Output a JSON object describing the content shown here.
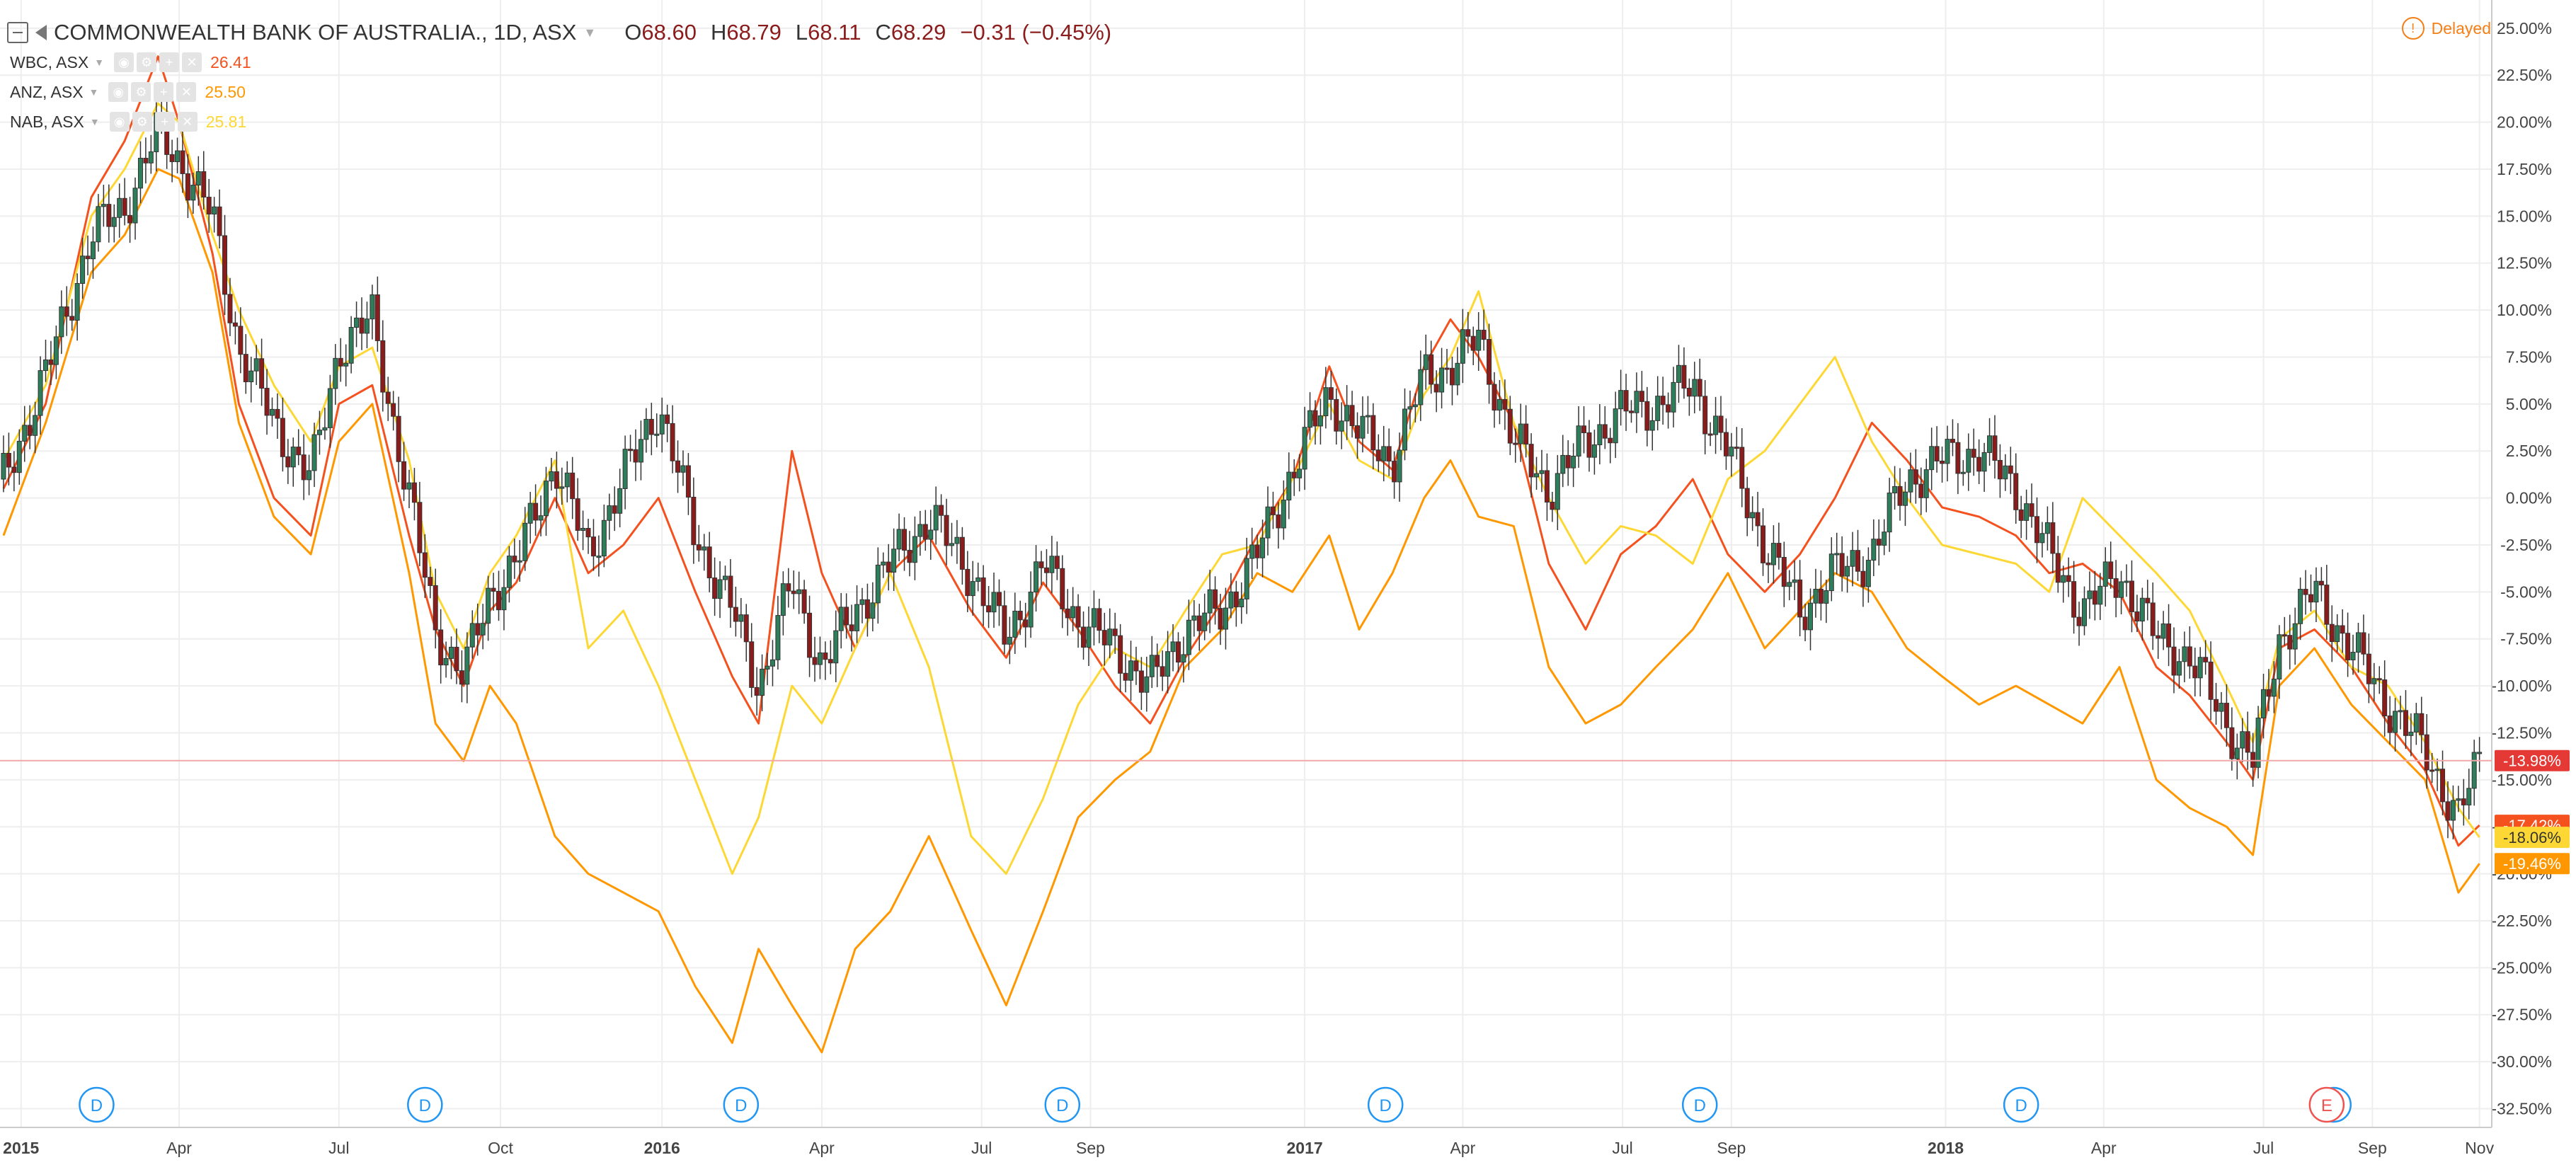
{
  "header": {
    "symbol_title": "COMMONWEALTH BANK OF AUSTRALIA., 1D, ASX",
    "open_label": "O",
    "open_value": "68.60",
    "high_label": "H",
    "high_value": "68.79",
    "low_label": "L",
    "low_value": "68.11",
    "close_label": "C",
    "close_value": "68.29",
    "change": "−0.31 (−0.45%)"
  },
  "delayed_label": "Delayed",
  "compare_rows": [
    {
      "label": "WBC, ASX",
      "value": "26.41",
      "color": "#f4511e"
    },
    {
      "label": "ANZ, ASX",
      "value": "25.50",
      "color": "#ff9800"
    },
    {
      "label": "NAB, ASX",
      "value": "25.81",
      "color": "#fdd835"
    }
  ],
  "colors": {
    "candle_up": "#2e7d5b",
    "candle_down": "#8b1c1c",
    "wick": "#333333",
    "grid": "#eeeeee",
    "axis_text": "#444444",
    "crosshair": "#f2a8a8",
    "dividend_marker": "#2196f3",
    "earnings_marker": "#ef5350"
  },
  "chart_data": {
    "type": "line",
    "title": "COMMONWEALTH BANK OF AUSTRALIA., 1D, ASX",
    "main_series_style": "candlestick",
    "percent_scale": true,
    "x_range": [
      "2014-12-20",
      "2018-11-08"
    ],
    "ylim": [
      -33.5,
      26.5
    ],
    "y_tick_labels": [
      "25.00%",
      "22.50%",
      "20.00%",
      "17.50%",
      "15.00%",
      "12.50%",
      "10.00%",
      "7.50%",
      "5.00%",
      "2.50%",
      "0.00%",
      "-2.50%",
      "-5.00%",
      "-7.50%",
      "-10.00%",
      "-12.50%",
      "-15.00%",
      "-17.50%",
      "-20.00%",
      "-22.50%",
      "-25.00%",
      "-27.50%",
      "-30.00%",
      "-32.50%"
    ],
    "x_ticks": [
      {
        "label": "2015",
        "date": "2015-01-01",
        "bold": true
      },
      {
        "label": "Apr",
        "date": "2015-04-01"
      },
      {
        "label": "Jul",
        "date": "2015-07-01"
      },
      {
        "label": "Oct",
        "date": "2015-10-01"
      },
      {
        "label": "2016",
        "date": "2016-01-01",
        "bold": true
      },
      {
        "label": "Apr",
        "date": "2016-04-01"
      },
      {
        "label": "Jul",
        "date": "2016-07-01"
      },
      {
        "label": "Sep",
        "date": "2016-09-01"
      },
      {
        "label": "2017",
        "date": "2017-01-01",
        "bold": true
      },
      {
        "label": "Apr",
        "date": "2017-04-01"
      },
      {
        "label": "Jul",
        "date": "2017-07-01"
      },
      {
        "label": "Sep",
        "date": "2017-09-01"
      },
      {
        "label": "2018",
        "date": "2018-01-01",
        "bold": true
      },
      {
        "label": "Apr",
        "date": "2018-04-01"
      },
      {
        "label": "Jul",
        "date": "2018-07-01"
      },
      {
        "label": "Sep",
        "date": "2018-09-01"
      },
      {
        "label": "Nov",
        "date": "2018-11-01"
      }
    ],
    "grid": true,
    "legend_position": "top-left",
    "markers": [
      {
        "label": "D",
        "date": "2015-02-13",
        "kind": "dividend"
      },
      {
        "label": "D",
        "date": "2015-08-19",
        "kind": "dividend"
      },
      {
        "label": "D",
        "date": "2016-02-15",
        "kind": "dividend"
      },
      {
        "label": "D",
        "date": "2016-08-16",
        "kind": "dividend"
      },
      {
        "label": "D",
        "date": "2017-02-16",
        "kind": "dividend"
      },
      {
        "label": "D",
        "date": "2017-08-14",
        "kind": "dividend"
      },
      {
        "label": "D",
        "date": "2018-02-13",
        "kind": "dividend"
      },
      {
        "label": "D",
        "date": "2018-08-10",
        "kind": "dividend"
      },
      {
        "label": "E",
        "date": "2018-08-06",
        "kind": "earnings"
      }
    ],
    "last_value_labels": [
      {
        "label": "-13.98%",
        "value": -13.98,
        "series": "COMMONWEALTH BANK OF AUSTRALIA., 1D, ASX",
        "bg": "#e53935"
      },
      {
        "label": "-17.42%",
        "value": -17.42,
        "series": "WBC, ASX",
        "bg": "#f4511e"
      },
      {
        "label": "-18.06%",
        "value": -18.06,
        "series": "NAB, ASX",
        "bg": "#fdd835"
      },
      {
        "label": "-19.46%",
        "value": -19.46,
        "series": "ANZ, ASX",
        "bg": "#ff9800"
      }
    ],
    "series": [
      {
        "name": "COMMONWEALTH BANK OF AUSTRALIA., 1D, ASX",
        "color": "#2e7d5b",
        "style": "candlestick",
        "x": [
          "2014-12-22",
          "2015-01-15",
          "2015-02-10",
          "2015-03-01",
          "2015-03-20",
          "2015-04-01",
          "2015-04-20",
          "2015-05-05",
          "2015-05-25",
          "2015-06-15",
          "2015-07-01",
          "2015-07-20",
          "2015-08-10",
          "2015-08-25",
          "2015-09-10",
          "2015-09-25",
          "2015-10-10",
          "2015-11-01",
          "2015-11-20",
          "2015-12-10",
          "2015-12-30",
          "2016-01-20",
          "2016-02-10",
          "2016-02-25",
          "2016-03-15",
          "2016-04-01",
          "2016-04-20",
          "2016-05-10",
          "2016-06-01",
          "2016-06-25",
          "2016-07-15",
          "2016-08-05",
          "2016-08-25",
          "2016-09-15",
          "2016-10-05",
          "2016-10-25",
          "2016-11-15",
          "2016-12-05",
          "2016-12-25",
          "2017-01-15",
          "2017-02-01",
          "2017-02-20",
          "2017-03-10",
          "2017-03-25",
          "2017-04-10",
          "2017-04-30",
          "2017-05-20",
          "2017-06-10",
          "2017-06-30",
          "2017-07-20",
          "2017-08-10",
          "2017-08-30",
          "2017-09-20",
          "2017-10-10",
          "2017-10-30",
          "2017-11-20",
          "2017-12-10",
          "2017-12-30",
          "2018-01-20",
          "2018-02-10",
          "2018-03-01",
          "2018-03-20",
          "2018-04-10",
          "2018-05-01",
          "2018-05-20",
          "2018-06-10",
          "2018-06-25",
          "2018-07-10",
          "2018-07-30",
          "2018-08-20",
          "2018-09-10",
          "2018-10-01",
          "2018-10-20",
          "2018-11-01"
        ],
        "y": [
          1.0,
          6.5,
          14.0,
          15.5,
          19.5,
          18.0,
          15.0,
          8.0,
          4.0,
          1.0,
          8.0,
          9.5,
          0.0,
          -7.0,
          -9.5,
          -5.0,
          -3.5,
          2.0,
          -3.0,
          1.0,
          5.0,
          -2.0,
          -6.0,
          -10.0,
          -4.5,
          -9.0,
          -6.0,
          -3.5,
          -1.0,
          -4.0,
          -7.5,
          -3.5,
          -6.5,
          -8.0,
          -10.0,
          -7.0,
          -6.0,
          -3.0,
          1.5,
          5.5,
          3.5,
          2.0,
          6.5,
          7.0,
          8.5,
          3.0,
          0.5,
          3.0,
          4.5,
          5.0,
          6.0,
          2.5,
          -2.5,
          -6.0,
          -4.0,
          -3.0,
          1.0,
          2.0,
          2.5,
          0.5,
          -3.0,
          -6.0,
          -4.0,
          -7.5,
          -8.5,
          -12.0,
          -14.0,
          -7.5,
          -5.0,
          -8.0,
          -11.0,
          -13.5,
          -17.0,
          -13.98
        ]
      },
      {
        "name": "WBC, ASX",
        "color": "#f4511e",
        "style": "line",
        "x": [
          "2014-12-22",
          "2015-01-15",
          "2015-02-10",
          "2015-03-01",
          "2015-03-20",
          "2015-04-01",
          "2015-04-20",
          "2015-05-05",
          "2015-05-25",
          "2015-06-15",
          "2015-07-01",
          "2015-07-20",
          "2015-08-10",
          "2015-08-25",
          "2015-09-10",
          "2015-09-25",
          "2015-10-10",
          "2015-11-01",
          "2015-11-20",
          "2015-12-10",
          "2015-12-30",
          "2016-01-20",
          "2016-02-10",
          "2016-02-25",
          "2016-03-15",
          "2016-04-01",
          "2016-04-20",
          "2016-05-10",
          "2016-06-01",
          "2016-06-25",
          "2016-07-15",
          "2016-08-05",
          "2016-08-25",
          "2016-09-15",
          "2016-10-05",
          "2016-10-25",
          "2016-11-15",
          "2016-12-05",
          "2016-12-25",
          "2017-01-15",
          "2017-02-01",
          "2017-02-20",
          "2017-03-10",
          "2017-03-25",
          "2017-04-10",
          "2017-04-30",
          "2017-05-20",
          "2017-06-10",
          "2017-06-30",
          "2017-07-20",
          "2017-08-10",
          "2017-08-30",
          "2017-09-20",
          "2017-10-10",
          "2017-10-30",
          "2017-11-20",
          "2017-12-10",
          "2017-12-30",
          "2018-01-20",
          "2018-02-10",
          "2018-03-01",
          "2018-03-20",
          "2018-04-10",
          "2018-05-01",
          "2018-05-20",
          "2018-06-10",
          "2018-06-25",
          "2018-07-10",
          "2018-07-30",
          "2018-08-20",
          "2018-09-10",
          "2018-10-01",
          "2018-10-20",
          "2018-11-01"
        ],
        "y": [
          0.5,
          5.0,
          16.0,
          19.0,
          23.5,
          20.0,
          13.0,
          5.0,
          0.0,
          -2.0,
          5.0,
          6.0,
          -2.0,
          -7.0,
          -10.0,
          -6.0,
          -4.5,
          0.0,
          -4.0,
          -2.5,
          0.0,
          -5.0,
          -9.5,
          -12.0,
          2.5,
          -4.0,
          -8.0,
          -4.0,
          -2.0,
          -6.0,
          -8.5,
          -4.5,
          -7.0,
          -10.0,
          -12.0,
          -8.5,
          -5.5,
          -2.0,
          1.0,
          7.0,
          3.0,
          1.5,
          7.0,
          9.5,
          7.5,
          4.0,
          -3.5,
          -7.0,
          -3.0,
          -1.5,
          1.0,
          -3.0,
          -5.0,
          -3.0,
          0.0,
          4.0,
          2.0,
          -0.5,
          -1.0,
          -2.0,
          -4.0,
          -3.5,
          -5.0,
          -9.0,
          -10.5,
          -13.0,
          -15.0,
          -8.0,
          -7.0,
          -9.0,
          -12.0,
          -14.5,
          -18.5,
          -17.42
        ]
      },
      {
        "name": "ANZ, ASX",
        "color": "#ff9800",
        "style": "line",
        "x": [
          "2014-12-22",
          "2015-01-15",
          "2015-02-10",
          "2015-03-01",
          "2015-03-20",
          "2015-04-01",
          "2015-04-20",
          "2015-05-05",
          "2015-05-25",
          "2015-06-15",
          "2015-07-01",
          "2015-07-20",
          "2015-08-10",
          "2015-08-25",
          "2015-09-10",
          "2015-09-25",
          "2015-10-10",
          "2015-11-01",
          "2015-11-20",
          "2015-12-10",
          "2015-12-30",
          "2016-01-20",
          "2016-02-10",
          "2016-02-25",
          "2016-03-15",
          "2016-04-01",
          "2016-04-20",
          "2016-05-10",
          "2016-06-01",
          "2016-06-25",
          "2016-07-15",
          "2016-08-05",
          "2016-08-25",
          "2016-09-15",
          "2016-10-05",
          "2016-10-25",
          "2016-11-15",
          "2016-12-05",
          "2016-12-25",
          "2017-01-15",
          "2017-02-01",
          "2017-02-20",
          "2017-03-10",
          "2017-03-25",
          "2017-04-10",
          "2017-04-30",
          "2017-05-20",
          "2017-06-10",
          "2017-06-30",
          "2017-07-20",
          "2017-08-10",
          "2017-08-30",
          "2017-09-20",
          "2017-10-10",
          "2017-10-30",
          "2017-11-20",
          "2017-12-10",
          "2017-12-30",
          "2018-01-20",
          "2018-02-10",
          "2018-03-01",
          "2018-03-20",
          "2018-04-10",
          "2018-05-01",
          "2018-05-20",
          "2018-06-10",
          "2018-06-25",
          "2018-07-10",
          "2018-07-30",
          "2018-08-20",
          "2018-09-10",
          "2018-10-01",
          "2018-10-20",
          "2018-11-01"
        ],
        "y": [
          -2.0,
          4.0,
          12.0,
          14.0,
          17.5,
          17.0,
          12.0,
          4.0,
          -1.0,
          -3.0,
          3.0,
          5.0,
          -4.0,
          -12.0,
          -14.0,
          -10.0,
          -12.0,
          -18.0,
          -20.0,
          -21.0,
          -22.0,
          -26.0,
          -29.0,
          -24.0,
          -27.0,
          -29.5,
          -24.0,
          -22.0,
          -18.0,
          -23.0,
          -27.0,
          -22.0,
          -17.0,
          -15.0,
          -13.5,
          -9.0,
          -7.0,
          -4.0,
          -5.0,
          -2.0,
          -7.0,
          -4.0,
          0.0,
          2.0,
          -1.0,
          -1.5,
          -9.0,
          -12.0,
          -11.0,
          -9.0,
          -7.0,
          -4.0,
          -8.0,
          -6.0,
          -4.0,
          -5.0,
          -8.0,
          -9.5,
          -11.0,
          -10.0,
          -11.0,
          -12.0,
          -9.0,
          -15.0,
          -16.5,
          -17.5,
          -19.0,
          -10.0,
          -8.0,
          -11.0,
          -13.0,
          -15.0,
          -21.0,
          -19.46
        ]
      },
      {
        "name": "NAB, ASX",
        "color": "#fdd835",
        "style": "line",
        "x": [
          "2014-12-22",
          "2015-01-15",
          "2015-02-10",
          "2015-03-01",
          "2015-03-20",
          "2015-04-01",
          "2015-04-20",
          "2015-05-05",
          "2015-05-25",
          "2015-06-15",
          "2015-07-01",
          "2015-07-20",
          "2015-08-10",
          "2015-08-25",
          "2015-09-10",
          "2015-09-25",
          "2015-10-10",
          "2015-11-01",
          "2015-11-20",
          "2015-12-10",
          "2015-12-30",
          "2016-01-20",
          "2016-02-10",
          "2016-02-25",
          "2016-03-15",
          "2016-04-01",
          "2016-04-20",
          "2016-05-10",
          "2016-06-01",
          "2016-06-25",
          "2016-07-15",
          "2016-08-05",
          "2016-08-25",
          "2016-09-15",
          "2016-10-05",
          "2016-10-25",
          "2016-11-15",
          "2016-12-05",
          "2016-12-25",
          "2017-01-15",
          "2017-02-01",
          "2017-02-20",
          "2017-03-10",
          "2017-03-25",
          "2017-04-10",
          "2017-04-30",
          "2017-05-20",
          "2017-06-10",
          "2017-06-30",
          "2017-07-20",
          "2017-08-10",
          "2017-08-30",
          "2017-09-20",
          "2017-10-10",
          "2017-10-30",
          "2017-11-20",
          "2017-12-10",
          "2017-12-30",
          "2018-01-20",
          "2018-02-10",
          "2018-03-01",
          "2018-03-20",
          "2018-04-10",
          "2018-05-01",
          "2018-05-20",
          "2018-06-10",
          "2018-06-25",
          "2018-07-10",
          "2018-07-30",
          "2018-08-20",
          "2018-09-10",
          "2018-10-01",
          "2018-10-20",
          "2018-11-01"
        ],
        "y": [
          2.0,
          6.0,
          15.0,
          17.5,
          21.0,
          20.0,
          14.0,
          10.0,
          6.0,
          3.0,
          7.0,
          8.0,
          2.0,
          -5.0,
          -8.0,
          -4.0,
          -2.0,
          2.0,
          -8.0,
          -6.0,
          -10.0,
          -15.0,
          -20.0,
          -17.0,
          -10.0,
          -12.0,
          -8.0,
          -4.0,
          -9.0,
          -18.0,
          -20.0,
          -16.0,
          -11.0,
          -8.0,
          -9.0,
          -6.0,
          -3.0,
          -2.5,
          1.0,
          5.0,
          2.0,
          1.0,
          5.5,
          7.5,
          11.0,
          4.0,
          0.0,
          -3.5,
          -1.5,
          -2.0,
          -3.5,
          1.0,
          2.5,
          5.0,
          7.5,
          3.0,
          0.0,
          -2.5,
          -3.0,
          -3.5,
          -5.0,
          0.0,
          -2.0,
          -4.0,
          -6.0,
          -10.0,
          -13.0,
          -7.5,
          -6.0,
          -9.0,
          -10.0,
          -13.0,
          -16.5,
          -18.06
        ]
      }
    ]
  }
}
